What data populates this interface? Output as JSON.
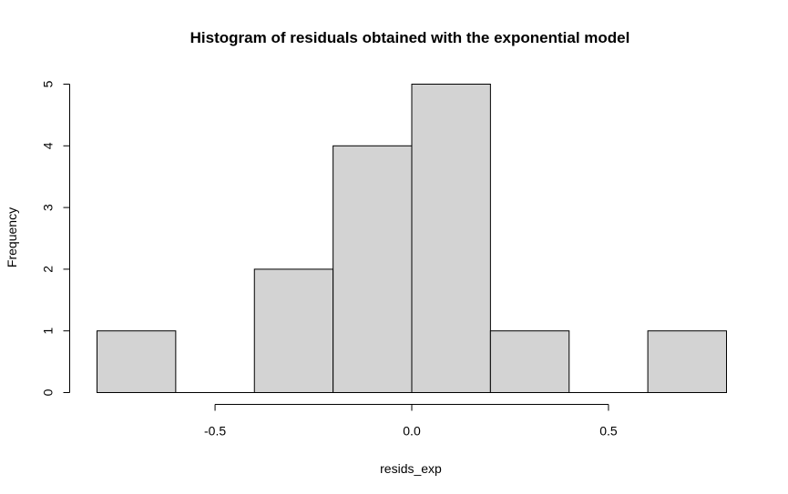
{
  "chart_data": {
    "type": "bar",
    "title": "Histogram of residuals obtained with the exponential model",
    "xlabel": "resids_exp",
    "ylabel": "Frequency",
    "bins": [
      {
        "start": -0.8,
        "end": -0.6,
        "count": 1
      },
      {
        "start": -0.6,
        "end": -0.4,
        "count": 0
      },
      {
        "start": -0.4,
        "end": -0.2,
        "count": 2
      },
      {
        "start": -0.2,
        "end": 0.0,
        "count": 4
      },
      {
        "start": 0.0,
        "end": 0.2,
        "count": 5
      },
      {
        "start": 0.2,
        "end": 0.4,
        "count": 1
      },
      {
        "start": 0.4,
        "end": 0.6,
        "count": 0
      },
      {
        "start": 0.6,
        "end": 0.8,
        "count": 1
      }
    ],
    "xlim": [
      -0.8,
      0.8
    ],
    "ylim": [
      0,
      5
    ],
    "x_ticks": [
      {
        "value": -0.5,
        "label": "-0.5"
      },
      {
        "value": 0.0,
        "label": "0.0"
      },
      {
        "value": 0.5,
        "label": "0.5"
      }
    ],
    "y_ticks": [
      {
        "value": 0,
        "label": "0"
      },
      {
        "value": 1,
        "label": "1"
      },
      {
        "value": 2,
        "label": "2"
      },
      {
        "value": 3,
        "label": "3"
      },
      {
        "value": 4,
        "label": "4"
      },
      {
        "value": 5,
        "label": "5"
      }
    ],
    "grid": false,
    "colors": {
      "bar_fill": "#d3d3d3",
      "bar_stroke": "#000000"
    }
  }
}
